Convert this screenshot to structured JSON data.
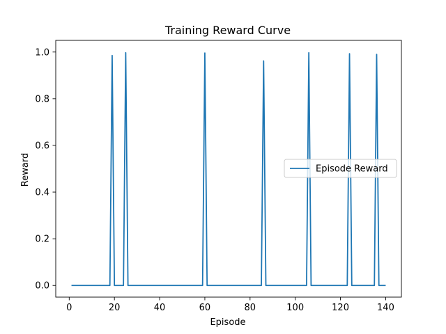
{
  "chart_data": {
    "type": "line",
    "title": "Training Reward Curve",
    "xlabel": "Episode",
    "ylabel": "Reward",
    "xlim": [
      -5.95,
      146.95
    ],
    "ylim": [
      -0.05,
      1.05
    ],
    "xticks": [
      0,
      20,
      40,
      60,
      80,
      100,
      120,
      140
    ],
    "yticks": [
      0.0,
      0.2,
      0.4,
      0.6,
      0.8,
      1.0
    ],
    "ytick_labels": [
      "0.0",
      "0.2",
      "0.4",
      "0.6",
      "0.8",
      "1.0"
    ],
    "grid": false,
    "legend": {
      "position": "center-right",
      "entries": [
        "Episode Reward"
      ]
    },
    "series": [
      {
        "name": "Episode Reward",
        "color": "#1f77b4",
        "spikes": [
          {
            "x": 19,
            "y": 0.985
          },
          {
            "x": 25,
            "y": 0.997
          },
          {
            "x": 60,
            "y": 0.996
          },
          {
            "x": 86,
            "y": 0.962
          },
          {
            "x": 106,
            "y": 0.997
          },
          {
            "x": 124,
            "y": 0.993
          },
          {
            "x": 136,
            "y": 0.99
          }
        ],
        "baseline": 0,
        "x_start": 1,
        "x_end": 140
      }
    ]
  }
}
